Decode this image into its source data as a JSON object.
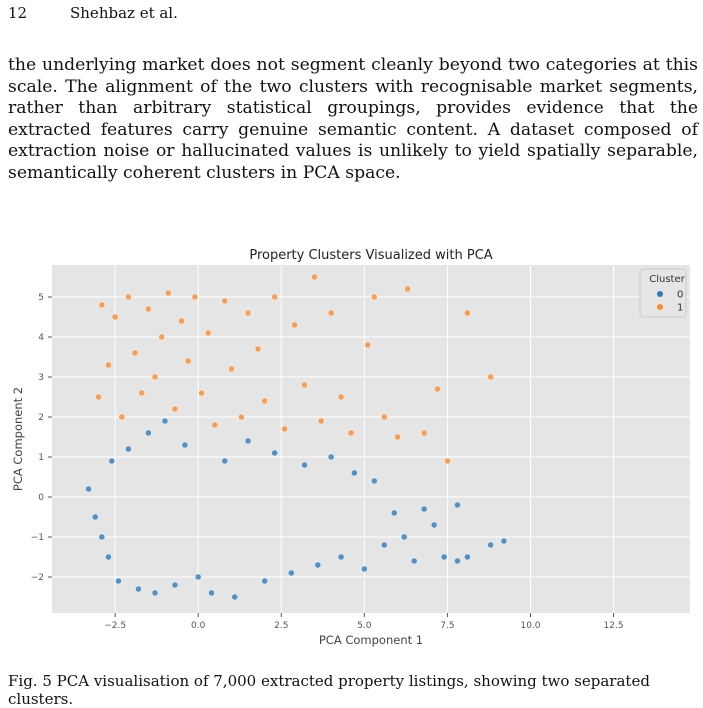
{
  "header": {
    "page_number": "12",
    "running_head": "Shehbaz et al."
  },
  "body_text": "the underlying market does not segment cleanly beyond two categories at this scale. The alignment of the two clusters with recognisable market segments, rather than arbitrary statistical groupings, provides evidence that the extracted features carry genuine semantic content. A dataset composed of extraction noise or hallucinated values is unlikely to yield spatially separable, semantically coherent clusters in PCA space.",
  "chart_data": {
    "type": "scatter",
    "title": "Property Clusters Visualized with PCA",
    "xlabel": "PCA Component 1",
    "ylabel": "PCA Component 2",
    "xlim": [
      -4.4,
      14.8
    ],
    "ylim": [
      -2.9,
      5.8
    ],
    "xticks": [
      -2.5,
      0.0,
      2.5,
      5.0,
      7.5,
      10.0,
      12.5
    ],
    "xtick_labels": [
      "−2.5",
      "0.0",
      "2.5",
      "5.0",
      "7.5",
      "10.0",
      "12.5"
    ],
    "yticks": [
      -2,
      -1,
      0,
      1,
      2,
      3,
      4,
      5
    ],
    "ytick_labels": [
      "−2",
      "−1",
      "0",
      "1",
      "2",
      "3",
      "4",
      "5"
    ],
    "grid": true,
    "legend": {
      "title": "Cluster",
      "placement": "top-right"
    },
    "colors": {
      "0": "#2f7cb9",
      "1": "#fc8a2c",
      "plot_bg": "#e5e5e5",
      "grid": "#ffffff"
    },
    "series": [
      {
        "name": "0",
        "points": [
          [
            -3.3,
            0.2
          ],
          [
            -3.1,
            -0.5
          ],
          [
            -2.9,
            -1.0
          ],
          [
            -2.7,
            -1.5
          ],
          [
            -2.6,
            0.9
          ],
          [
            -2.4,
            -2.1
          ],
          [
            -2.1,
            1.2
          ],
          [
            -1.8,
            -2.3
          ],
          [
            -1.5,
            1.6
          ],
          [
            -1.3,
            -2.4
          ],
          [
            -1.0,
            1.9
          ],
          [
            -0.7,
            -2.2
          ],
          [
            -0.4,
            1.3
          ],
          [
            0.0,
            -2.0
          ],
          [
            0.4,
            -2.4
          ],
          [
            0.8,
            0.9
          ],
          [
            1.1,
            -2.5
          ],
          [
            1.5,
            1.4
          ],
          [
            2.0,
            -2.1
          ],
          [
            2.3,
            1.1
          ],
          [
            2.8,
            -1.9
          ],
          [
            3.2,
            0.8
          ],
          [
            3.6,
            -1.7
          ],
          [
            4.0,
            1.0
          ],
          [
            4.3,
            -1.5
          ],
          [
            4.7,
            0.6
          ],
          [
            5.0,
            -1.8
          ],
          [
            5.3,
            0.4
          ],
          [
            5.6,
            -1.2
          ],
          [
            5.9,
            -0.4
          ],
          [
            6.2,
            -1.0
          ],
          [
            6.5,
            -1.6
          ],
          [
            6.8,
            -0.3
          ],
          [
            7.1,
            -0.7
          ],
          [
            7.4,
            -1.5
          ],
          [
            7.8,
            -1.6
          ],
          [
            8.1,
            -1.5
          ],
          [
            8.8,
            -1.2
          ],
          [
            9.2,
            -1.1
          ],
          [
            7.8,
            -0.2
          ]
        ]
      },
      {
        "name": "1",
        "points": [
          [
            -3.0,
            2.5
          ],
          [
            -2.9,
            4.8
          ],
          [
            -2.7,
            3.3
          ],
          [
            -2.5,
            4.5
          ],
          [
            -2.3,
            2.0
          ],
          [
            -2.1,
            5.0
          ],
          [
            -1.9,
            3.6
          ],
          [
            -1.7,
            2.6
          ],
          [
            -1.5,
            4.7
          ],
          [
            -1.3,
            3.0
          ],
          [
            -1.1,
            4.0
          ],
          [
            -0.9,
            5.1
          ],
          [
            -0.7,
            2.2
          ],
          [
            -0.5,
            4.4
          ],
          [
            -0.3,
            3.4
          ],
          [
            -0.1,
            5.0
          ],
          [
            0.1,
            2.6
          ],
          [
            0.3,
            4.1
          ],
          [
            0.5,
            1.8
          ],
          [
            0.8,
            4.9
          ],
          [
            1.0,
            3.2
          ],
          [
            1.3,
            2.0
          ],
          [
            1.5,
            4.6
          ],
          [
            1.8,
            3.7
          ],
          [
            2.0,
            2.4
          ],
          [
            2.3,
            5.0
          ],
          [
            2.6,
            1.7
          ],
          [
            2.9,
            4.3
          ],
          [
            3.2,
            2.8
          ],
          [
            3.5,
            5.5
          ],
          [
            3.7,
            1.9
          ],
          [
            4.0,
            4.6
          ],
          [
            4.3,
            2.5
          ],
          [
            4.6,
            1.6
          ],
          [
            5.1,
            3.8
          ],
          [
            5.3,
            5.0
          ],
          [
            5.6,
            2.0
          ],
          [
            6.0,
            1.5
          ],
          [
            6.3,
            5.2
          ],
          [
            6.8,
            1.6
          ],
          [
            7.2,
            2.7
          ],
          [
            7.5,
            0.9
          ],
          [
            8.1,
            4.6
          ],
          [
            8.8,
            3.0
          ]
        ]
      }
    ]
  },
  "caption": "Fig. 5 PCA visualisation of 7,000 extracted property listings, showing two separated clusters."
}
